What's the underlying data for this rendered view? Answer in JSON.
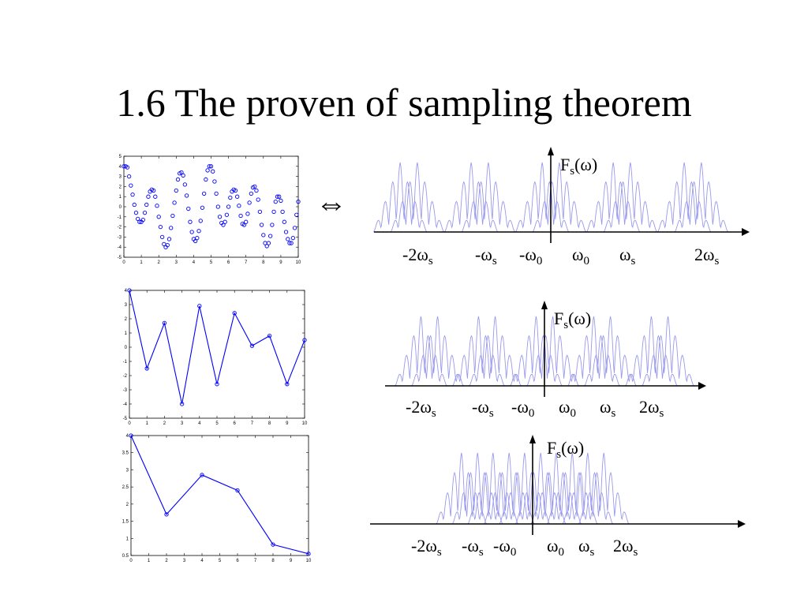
{
  "slide": {
    "title": "1.6 The proven of sampling theorem",
    "equivalence_symbol": "⇔"
  },
  "colors": {
    "plot_line": "#0000ff",
    "spectrum": "#9999ee",
    "axis": "#000000"
  },
  "chart_data": [
    {
      "type": "scatter",
      "series": [
        {
          "x": [
            0,
            0.1,
            0.2,
            0.3,
            0.4,
            0.5,
            0.6,
            0.7,
            0.8,
            0.9,
            1.0,
            1.1,
            1.2,
            1.3,
            1.4,
            1.5,
            1.6,
            1.7,
            1.8,
            1.9,
            2.0,
            2.1,
            2.2,
            2.3,
            2.4,
            2.5,
            2.6,
            2.7,
            2.8,
            2.9,
            3.0,
            3.1,
            3.2,
            3.3,
            3.4,
            3.5,
            3.6,
            3.7,
            3.8,
            3.9,
            4.0,
            4.1,
            4.2,
            4.3,
            4.4,
            4.5,
            4.6,
            4.7,
            4.8,
            4.9,
            5.0,
            5.1,
            5.2,
            5.3,
            5.4,
            5.5,
            5.6,
            5.7,
            5.8,
            5.9,
            6.0,
            6.1,
            6.2,
            6.3,
            6.4,
            6.5,
            6.6,
            6.7,
            6.8,
            6.9,
            7.0,
            7.1,
            7.2,
            7.3,
            7.4,
            7.5,
            7.6,
            7.7,
            7.8,
            7.9,
            8.0,
            8.1,
            8.2,
            8.3,
            8.4,
            8.5,
            8.6,
            8.7,
            8.8,
            8.9,
            9.0,
            9.1,
            9.2,
            9.3,
            9.4,
            9.5,
            9.6,
            9.7,
            9.8,
            9.9,
            10.0
          ],
          "y": [
            4.0,
            4.0,
            3.9,
            3.0,
            2.1,
            1.2,
            0.2,
            -0.6,
            -1.2,
            -1.5,
            -1.5,
            -1.3,
            -0.6,
            0.2,
            1.0,
            1.5,
            1.7,
            1.6,
            1.0,
            0.1,
            -1.0,
            -2.0,
            -3.0,
            -3.7,
            -4.0,
            -3.8,
            -3.2,
            -2.1,
            -0.9,
            0.4,
            1.6,
            2.7,
            3.3,
            3.4,
            3.1,
            2.2,
            1.1,
            -0.2,
            -1.5,
            -2.5,
            -3.2,
            -3.4,
            -3.1,
            -2.4,
            -1.4,
            -0.1,
            1.3,
            2.7,
            3.6,
            4.0,
            4.0,
            3.5,
            2.5,
            1.3,
            0.0,
            -1.0,
            -1.6,
            -1.8,
            -1.5,
            -0.8,
            0.0,
            0.9,
            1.5,
            1.7,
            1.6,
            1.0,
            0.1,
            -0.9,
            -1.7,
            -1.8,
            -1.5,
            -0.7,
            0.4,
            1.3,
            1.9,
            2.0,
            1.6,
            0.7,
            -0.5,
            -1.8,
            -2.8,
            -3.6,
            -3.9,
            -3.6,
            -2.9,
            -1.8,
            -0.5,
            0.5,
            1.0,
            1.0,
            0.6,
            -0.5,
            -1.5,
            -2.5,
            -3.2,
            -3.6,
            -3.6,
            -3.1,
            -2.1,
            -0.8,
            0.5
          ]
        }
      ],
      "xlim": [
        0,
        10
      ],
      "ylim": [
        -5,
        5
      ],
      "xticks": [
        "0",
        "1",
        "2",
        "3",
        "4",
        "5",
        "6",
        "7",
        "8",
        "9",
        "10"
      ],
      "yticks": [
        "5",
        "4",
        "3",
        "2",
        "1",
        "0",
        "-1",
        "-2",
        "-3",
        "-4",
        "-5"
      ]
    },
    {
      "type": "line",
      "series": [
        {
          "x": [
            0,
            1,
            2,
            3,
            4,
            5,
            6,
            7,
            8,
            9,
            10
          ],
          "y": [
            4.0,
            -1.5,
            1.7,
            -4.0,
            2.9,
            -2.6,
            2.4,
            0.1,
            0.8,
            -2.6,
            0.5
          ]
        }
      ],
      "xlim": [
        0,
        10
      ],
      "ylim": [
        -5,
        4
      ],
      "xticks": [
        "0",
        "1",
        "2",
        "3",
        "4",
        "5",
        "6",
        "7",
        "8",
        "9",
        "10"
      ],
      "yticks": [
        "4",
        "3",
        "2",
        "1",
        "0",
        "-1",
        "-2",
        "-3",
        "-4",
        "-5"
      ]
    },
    {
      "type": "line",
      "series": [
        {
          "x": [
            0,
            2,
            4,
            6,
            8,
            10
          ],
          "y": [
            4.0,
            1.7,
            2.85,
            2.4,
            0.82,
            0.55
          ]
        }
      ],
      "xlim": [
        0,
        10
      ],
      "ylim": [
        0.5,
        4
      ],
      "xticks": [
        "0",
        "1",
        "2",
        "3",
        "4",
        "5",
        "6",
        "7",
        "8",
        "9",
        "10"
      ],
      "yticks": [
        "4",
        "3.5",
        "3",
        "2.5",
        "2",
        "1.5",
        "1",
        "0.5"
      ]
    },
    {
      "type": "line",
      "description_axis": "frequency",
      "y_label": {
        "main": "F",
        "sub": "s",
        "tail": "(ω)"
      },
      "x_labels": [
        {
          "main": "-2ω",
          "sub": "s"
        },
        {
          "main": "-ω",
          "sub": "s"
        },
        {
          "main": "-ω",
          "sub": "0"
        },
        {
          "main": "ω",
          "sub": "0"
        },
        {
          "main": "ω",
          "sub": "s"
        },
        {
          "main": "2ω",
          "sub": "s"
        }
      ],
      "copy_centers": [
        -2,
        -1,
        0,
        1,
        2
      ],
      "sampling_frequency": 2.4,
      "signal_frequency": 0.35
    },
    {
      "type": "line",
      "description_axis": "frequency",
      "y_label": {
        "main": "F",
        "sub": "s",
        "tail": "(ω)"
      },
      "x_labels": [
        {
          "main": "-2ω",
          "sub": "s"
        },
        {
          "main": "-ω",
          "sub": "s"
        },
        {
          "main": "-ω",
          "sub": "0"
        },
        {
          "main": "ω",
          "sub": "0"
        },
        {
          "main": "ω",
          "sub": "s"
        },
        {
          "main": "2ω",
          "sub": "s"
        }
      ],
      "copy_centers": [
        -2,
        -1,
        0,
        1,
        2
      ],
      "sampling_frequency": 1.5,
      "signal_frequency": 0.35
    },
    {
      "type": "line",
      "description_axis": "frequency",
      "y_label": {
        "main": "F",
        "sub": "s",
        "tail": "(ω)"
      },
      "x_labels": [
        {
          "main": "-2ω",
          "sub": "s"
        },
        {
          "main": "-ω",
          "sub": "s"
        },
        {
          "main": "-ω",
          "sub": "0"
        },
        {
          "main": "ω",
          "sub": "0"
        },
        {
          "main": "ω",
          "sub": "s"
        },
        {
          "main": "2ω",
          "sub": "s"
        }
      ],
      "copy_centers": [
        -2,
        -1,
        0,
        1,
        2
      ],
      "sampling_frequency": 0.9,
      "signal_frequency": 0.35
    }
  ]
}
